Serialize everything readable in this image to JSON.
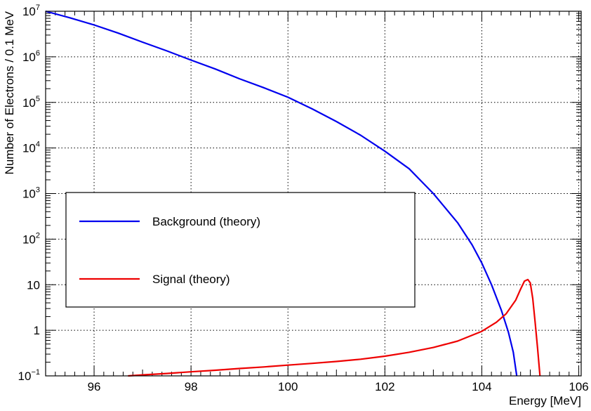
{
  "chart_data": {
    "type": "line",
    "xlabel": "Energy [MeV]",
    "ylabel": "Number of Electrons / 0.1 MeV",
    "xlim": [
      95,
      106.05
    ],
    "ylim": [
      0.1,
      10000000
    ],
    "y_scale": "log",
    "grid": true,
    "grid_style": "dotted",
    "x_ticks": [
      {
        "value": 96,
        "label": "96"
      },
      {
        "value": 98,
        "label": "98"
      },
      {
        "value": 100,
        "label": "100"
      },
      {
        "value": 102,
        "label": "102"
      },
      {
        "value": 104,
        "label": "104"
      },
      {
        "value": 106,
        "label": "106"
      }
    ],
    "y_ticks": [
      {
        "value": 0.1,
        "base": "10",
        "exp": "−1",
        "label": ""
      },
      {
        "value": 1,
        "base": "",
        "exp": "",
        "label": "1"
      },
      {
        "value": 10,
        "base": "",
        "exp": "",
        "label": "10"
      },
      {
        "value": 100,
        "base": "10",
        "exp": "2",
        "label": ""
      },
      {
        "value": 1000,
        "base": "10",
        "exp": "3",
        "label": ""
      },
      {
        "value": 10000,
        "base": "10",
        "exp": "4",
        "label": ""
      },
      {
        "value": 100000,
        "base": "10",
        "exp": "5",
        "label": ""
      },
      {
        "value": 1000000,
        "base": "10",
        "exp": "6",
        "label": ""
      },
      {
        "value": 10000000,
        "base": "10",
        "exp": "7",
        "label": ""
      }
    ],
    "legend": {
      "placement": "left-center"
    },
    "series": [
      {
        "name": "Background (theory)",
        "color": "#0000ee",
        "x": [
          95.0,
          95.5,
          96.0,
          96.5,
          97.0,
          97.5,
          98.0,
          98.5,
          99.0,
          99.5,
          100.0,
          100.5,
          101.0,
          101.5,
          102.0,
          102.5,
          103.0,
          103.5,
          103.8,
          104.0,
          104.2,
          104.4,
          104.55,
          104.65,
          104.72
        ],
        "y": [
          10000000,
          7200000,
          5000000,
          3300000,
          2100000,
          1350000,
          850000,
          540000,
          330000,
          210000,
          130000,
          72000,
          38000,
          19000,
          8500,
          3500,
          1000,
          230,
          75,
          30,
          10,
          2.8,
          0.9,
          0.33,
          0.1
        ]
      },
      {
        "name": "Signal (theory)",
        "color": "#ee0000",
        "x": [
          96.7,
          97.0,
          97.5,
          98.0,
          98.5,
          99.0,
          99.5,
          100.0,
          100.5,
          101.0,
          101.5,
          102.0,
          102.5,
          103.0,
          103.5,
          104.0,
          104.3,
          104.5,
          104.7,
          104.8,
          104.88,
          104.95,
          105.0,
          105.05,
          105.1,
          105.15,
          105.2
        ],
        "y": [
          0.1,
          0.105,
          0.113,
          0.123,
          0.133,
          0.145,
          0.157,
          0.172,
          0.188,
          0.207,
          0.232,
          0.27,
          0.33,
          0.42,
          0.58,
          0.95,
          1.5,
          2.3,
          4.6,
          8.0,
          12.0,
          13.0,
          11.0,
          5.0,
          1.5,
          0.4,
          0.1
        ]
      }
    ]
  }
}
